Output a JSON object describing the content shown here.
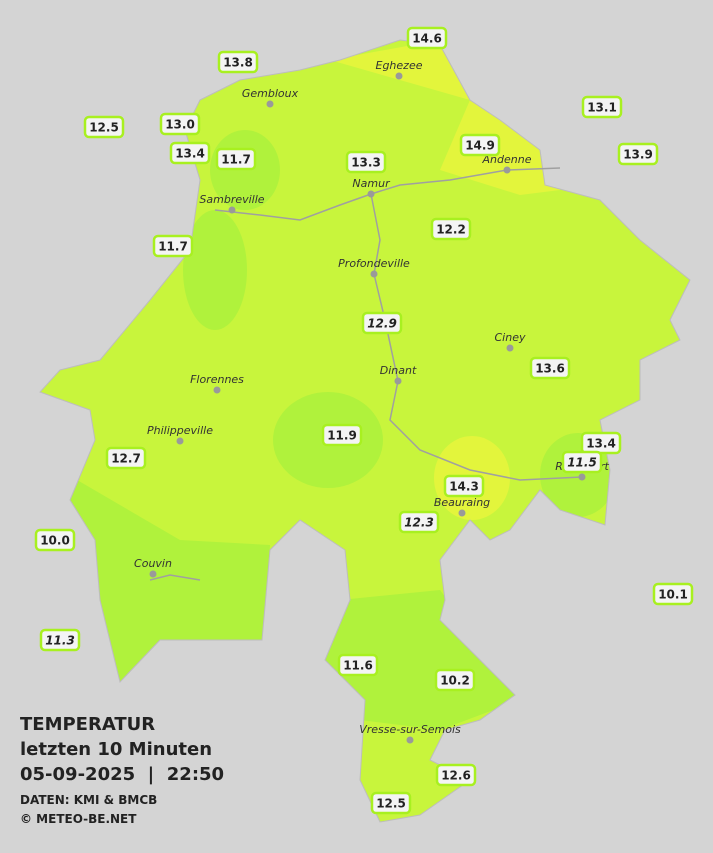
{
  "legend": {
    "title": "TEMPERATUR",
    "subtitle": "letzten 10 Minuten",
    "datetime": "05-09-2025  |  22:50",
    "source": "DATEN: KMI & BMCB",
    "copyright": "© METEO-BE.NET"
  },
  "cities": [
    "Eghezee",
    "Gembloux",
    "Andenne",
    "Namur",
    "Sambreville",
    "Profondeville",
    "Ciney",
    "Dinant",
    "Florennes",
    "Philippeville",
    "Rochefort",
    "Beauraing",
    "Couvin",
    "Vresse-sur-Semois"
  ],
  "stations": [
    {
      "label": "13.8"
    },
    {
      "label": "14.6"
    },
    {
      "label": "12.5"
    },
    {
      "label": "13.0"
    },
    {
      "label": "13.1"
    },
    {
      "label": "13.4"
    },
    {
      "label": "11.7"
    },
    {
      "label": "13.3"
    },
    {
      "label": "14.9"
    },
    {
      "label": "13.9"
    },
    {
      "label": "12.2"
    },
    {
      "label": "11.7"
    },
    {
      "label": "12.9",
      "italic": true
    },
    {
      "label": "13.6"
    },
    {
      "label": "11.9"
    },
    {
      "label": "13.4"
    },
    {
      "label": "11.5",
      "italic": true
    },
    {
      "label": "12.7"
    },
    {
      "label": "14.3"
    },
    {
      "label": "12.3",
      "italic": true
    },
    {
      "label": "10.0"
    },
    {
      "label": "10.1"
    },
    {
      "label": "11.3",
      "italic": true
    },
    {
      "label": "11.6"
    },
    {
      "label": "10.2"
    },
    {
      "label": "12.6"
    },
    {
      "label": "12.5"
    }
  ]
}
